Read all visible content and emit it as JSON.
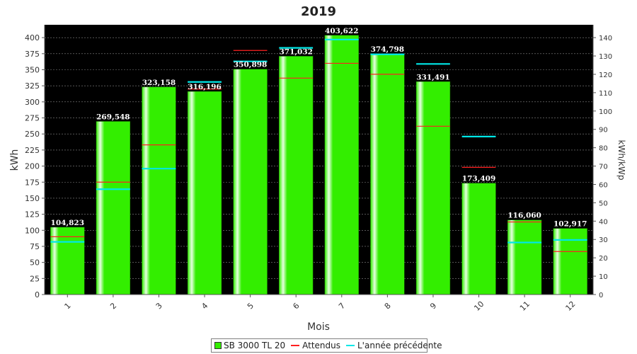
{
  "colors": {
    "plot_bg": "#000000",
    "bar": "#33ee00",
    "bar_highlight": "#e6ffe0",
    "expected": "#ff2020",
    "previous_year": "#00e8e8",
    "grid": "#888888",
    "label_text": "#ffffff"
  },
  "chart_data": {
    "type": "bar",
    "title": "2019",
    "xlabel": "Mois",
    "ylabel_left": "kWh",
    "ylabel_right": "kWh/kWp",
    "categories": [
      "1",
      "2",
      "3",
      "4",
      "5",
      "6",
      "7",
      "8",
      "9",
      "10",
      "11",
      "12"
    ],
    "ylim_left": [
      0,
      420
    ],
    "yticks_left": [
      0,
      25,
      50,
      75,
      100,
      125,
      150,
      175,
      200,
      225,
      250,
      275,
      300,
      325,
      350,
      375,
      400
    ],
    "ylim_right": [
      0,
      147
    ],
    "yticks_right": [
      0,
      10,
      20,
      30,
      40,
      50,
      60,
      70,
      80,
      90,
      100,
      110,
      120,
      130,
      140
    ],
    "grid": true,
    "legend_position": "bottom",
    "series": [
      {
        "name": "SB 3000 TL 20",
        "kind": "bar",
        "values": [
          104.823,
          269.548,
          323.158,
          316.196,
          350.898,
          371.032,
          403.622,
          374.798,
          331.491,
          173.409,
          116.06,
          102.917
        ],
        "labels": [
          "104,823",
          "269,548",
          "323,158",
          "316,196",
          "350,898",
          "371,032",
          "403,622",
          "374,798",
          "331,491",
          "173,409",
          "116,060",
          "102,917"
        ]
      },
      {
        "name": "Attendus",
        "kind": "marker",
        "values": [
          90,
          175,
          233,
          320,
          380,
          337,
          360,
          343,
          262,
          198,
          113,
          67
        ]
      },
      {
        "name": "L'année précédente",
        "kind": "marker",
        "values": [
          82,
          164,
          196,
          331,
          363,
          384,
          397,
          374,
          359,
          246,
          81,
          85
        ]
      }
    ]
  },
  "legend": {
    "items": [
      {
        "label": "SB 3000 TL 20"
      },
      {
        "label": "Attendus"
      },
      {
        "label": "L'année précédente"
      }
    ]
  }
}
